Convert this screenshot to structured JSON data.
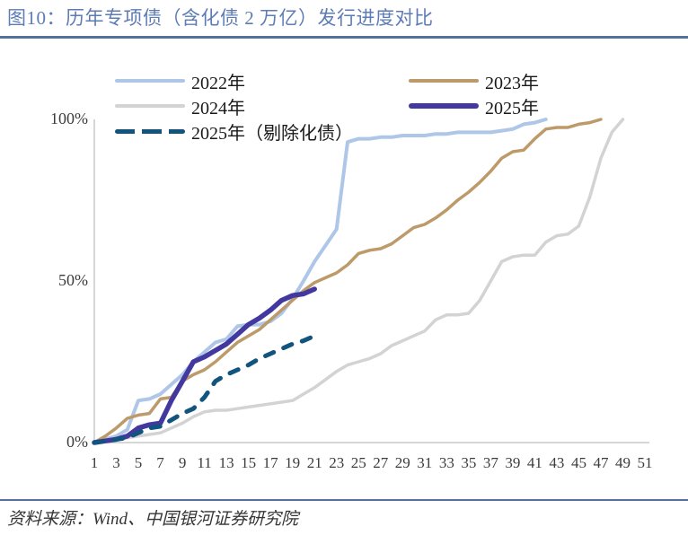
{
  "header": {
    "title": "图10：历年专项债（含化债 2 万亿）发行进度对比"
  },
  "footer": {
    "source": "资料来源：Wind、中国银河证券研究院"
  },
  "colors": {
    "title_text": "#5d7cb5",
    "separator_rule": "#53719f",
    "axis_line": "#c9c9c9",
    "tick_text": "#3c3c3c",
    "legend_text": "#191919",
    "source_text": "#353535"
  },
  "chart_data": {
    "type": "line",
    "title": "",
    "xlabel": "",
    "ylabel": "",
    "x_range": [
      1,
      51
    ],
    "ylim": [
      0,
      100
    ],
    "grid": false,
    "legend_position": "top-inside-two-columns",
    "x_ticks": [
      "1",
      "3",
      "5",
      "7",
      "9",
      "11",
      "13",
      "15",
      "17",
      "19",
      "21",
      "23",
      "25",
      "27",
      "29",
      "31",
      "33",
      "35",
      "37",
      "39",
      "41",
      "43",
      "45",
      "47",
      "49",
      "51"
    ],
    "y_ticks": [
      "0%",
      "50%",
      "100%"
    ],
    "y_tick_values": [
      0,
      50,
      100
    ],
    "y_unit": "%",
    "series": [
      {
        "id": "2022",
        "name": "2022年",
        "color": "#aec6e8",
        "line_width": 4,
        "dashed": false,
        "start_week": 1,
        "values": [
          0,
          1,
          2,
          4,
          13,
          13.5,
          15,
          18,
          21,
          25,
          28,
          31,
          32,
          36,
          36.5,
          36.5,
          37.5,
          40,
          44.5,
          50,
          56,
          61,
          66,
          93,
          94,
          94,
          94.5,
          94.5,
          95,
          95,
          95,
          95.5,
          95.5,
          96,
          96,
          96,
          96,
          96.5,
          97,
          98.5,
          99,
          100
        ]
      },
      {
        "id": "2023",
        "name": "2023年",
        "color": "#bd9a69",
        "line_width": 3.5,
        "dashed": false,
        "start_week": 1,
        "values": [
          0,
          2,
          4.5,
          7.5,
          8.5,
          9,
          13.5,
          14,
          19,
          21,
          22.5,
          25,
          28,
          31,
          33,
          35,
          38,
          41,
          44,
          47,
          49.5,
          51,
          52.5,
          55,
          58.5,
          59.5,
          60,
          61.5,
          64,
          66.5,
          67.5,
          69.5,
          72,
          75,
          77.5,
          80.5,
          84,
          88,
          90,
          90.5,
          94,
          97,
          97.5,
          97.5,
          98.5,
          99,
          100
        ]
      },
      {
        "id": "2024",
        "name": "2024年",
        "color": "#d3d3d5",
        "line_width": 3.5,
        "dashed": false,
        "start_week": 1,
        "values": [
          0,
          0.5,
          1,
          1.5,
          2,
          2.5,
          3,
          4.5,
          6,
          8,
          9.5,
          10,
          10,
          10.5,
          11,
          11.5,
          12,
          12.5,
          13,
          15,
          17,
          19.5,
          22,
          24,
          25,
          26,
          27.5,
          30,
          31.5,
          33,
          34.5,
          38,
          39.5,
          39.5,
          40,
          44,
          50,
          56,
          57.5,
          58,
          58,
          62,
          64,
          64.5,
          67,
          76,
          88,
          96,
          100
        ]
      },
      {
        "id": "2025",
        "name": "2025年",
        "color": "#4338a0",
        "line_width": 5.5,
        "dashed": false,
        "start_week": 1,
        "values": [
          0,
          0.5,
          1,
          2,
          4.5,
          5.5,
          6,
          13,
          19,
          25,
          26.5,
          28.5,
          30.5,
          33.5,
          36.5,
          38.5,
          41,
          44,
          45.5,
          46,
          47.5
        ]
      },
      {
        "id": "2025-ex",
        "name": "2025年（剔除化债）",
        "color": "#11547e",
        "line_width": 5,
        "dashed": true,
        "start_week": 1,
        "values": [
          0,
          0.5,
          1,
          1.5,
          3,
          4.5,
          5,
          7,
          9,
          10.5,
          14,
          19,
          21,
          22.5,
          24,
          26,
          27.5,
          29,
          30.5,
          31.5,
          33
        ]
      }
    ]
  }
}
